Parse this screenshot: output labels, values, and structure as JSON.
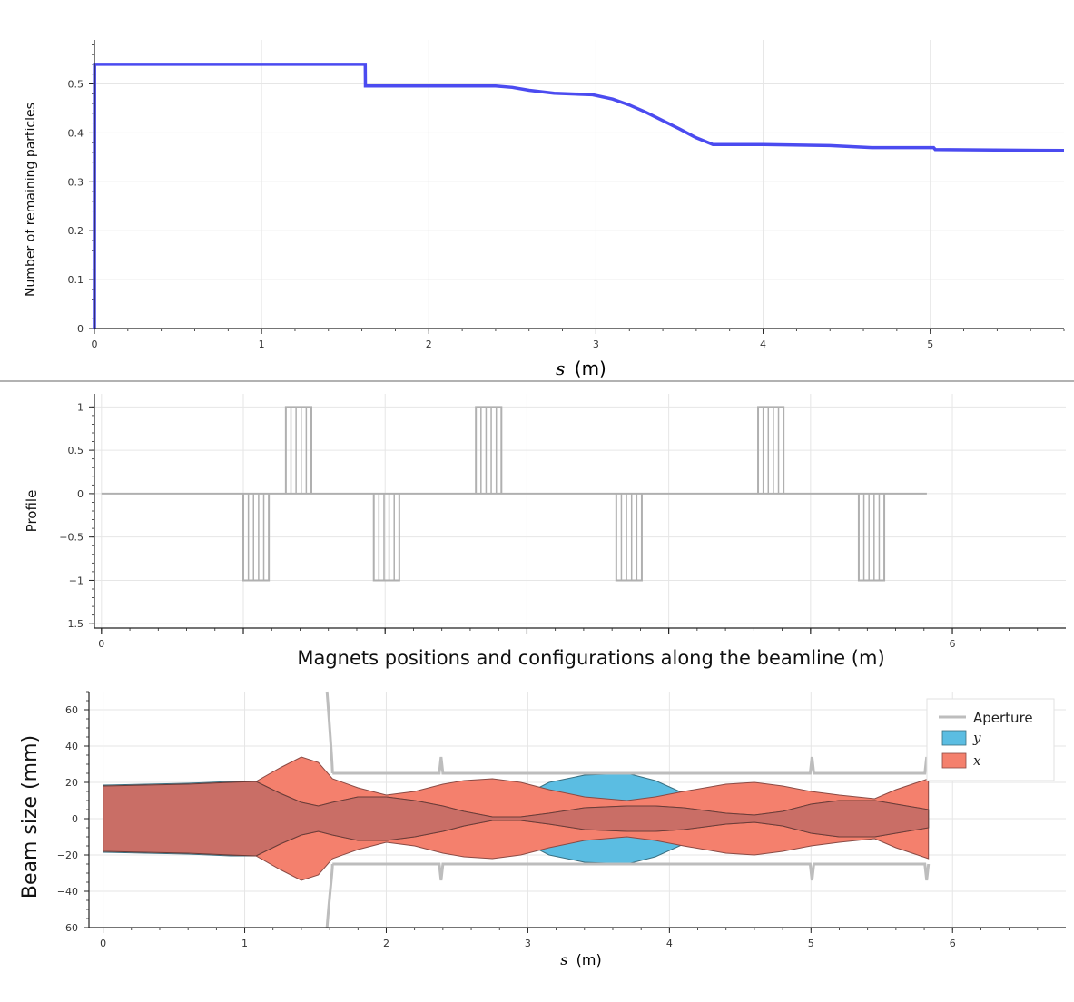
{
  "colors": {
    "survival_line": "#4b4bf0",
    "profile_line": "#b0b0b0",
    "aperture": "#bdbdbd",
    "beam_y": "#5bbde2",
    "beam_x": "#f4806d",
    "overlap": "#c96e66",
    "grid": "#e6e6e6"
  },
  "chart_data": [
    {
      "id": "survival",
      "type": "line",
      "ylabel": "Number of remaining particles",
      "xlabel_var": "s",
      "xlabel_unit": "(m)",
      "xlim": [
        0,
        5.8
      ],
      "ylim": [
        0,
        0.59
      ],
      "xticks": [
        0,
        1,
        2,
        3,
        4,
        5
      ],
      "yticks": [
        0,
        0.1,
        0.2,
        0.3,
        0.4,
        0.5
      ],
      "ytick_labels": [
        "0",
        "0.1",
        "0.2",
        "0.3",
        "0.4",
        "0.5"
      ],
      "x": [
        0,
        0.001,
        1.62,
        1.621,
        2.4,
        2.5,
        2.6,
        2.75,
        2.98,
        3.1,
        3.2,
        3.3,
        3.4,
        3.5,
        3.6,
        3.7,
        4.0,
        4.4,
        4.65,
        5.02,
        5.03,
        5.8
      ],
      "values": [
        0,
        0.54,
        0.54,
        0.496,
        0.496,
        0.493,
        0.487,
        0.481,
        0.478,
        0.469,
        0.457,
        0.442,
        0.425,
        0.408,
        0.39,
        0.376,
        0.376,
        0.374,
        0.37,
        0.37,
        0.366,
        0.364
      ]
    },
    {
      "id": "profile",
      "type": "line",
      "ylabel": "Profile",
      "xlabel": "Magnets positions and configurations along the beamline (m)",
      "xlim": [
        -0.05,
        6.8
      ],
      "ylim": [
        -1.55,
        1.15
      ],
      "xtick_positions": [
        0,
        1,
        2,
        3,
        4,
        5,
        6
      ],
      "xtick_labels": [
        "0",
        "",
        "",
        "",
        "",
        "",
        "6"
      ],
      "yticks": [
        1,
        0.5,
        0,
        -0.5,
        -1,
        -1.5
      ],
      "ytick_labels": [
        "1",
        "0.5",
        "0",
        "−0.5",
        "−1",
        "−1.5"
      ],
      "baseline": [
        0,
        5.82
      ],
      "magnets": [
        {
          "start": 1.0,
          "end": 1.18,
          "sign": -1
        },
        {
          "start": 1.3,
          "end": 1.48,
          "sign": 1
        },
        {
          "start": 1.92,
          "end": 2.1,
          "sign": -1
        },
        {
          "start": 2.64,
          "end": 2.82,
          "sign": 1
        },
        {
          "start": 3.63,
          "end": 3.81,
          "sign": -1
        },
        {
          "start": 4.63,
          "end": 4.81,
          "sign": 1
        },
        {
          "start": 5.34,
          "end": 5.52,
          "sign": -1
        }
      ]
    },
    {
      "id": "beam",
      "type": "area",
      "ylabel": "Beam size (mm)",
      "xlabel_var": "s",
      "xlabel_unit": "(m)",
      "xlim": [
        -0.1,
        6.8
      ],
      "ylim": [
        -60,
        70
      ],
      "xticks": [
        0,
        1,
        2,
        3,
        4,
        5,
        6
      ],
      "yticks": [
        60,
        40,
        20,
        0,
        -20,
        -40,
        -60
      ],
      "ytick_labels": [
        "60",
        "40",
        "20",
        "0",
        "−20",
        "−40",
        "−60"
      ],
      "legend": [
        "Aperture",
        "y",
        "x"
      ],
      "legend_position": "top-right",
      "s": [
        0,
        0.3,
        0.6,
        0.9,
        1.08,
        1.25,
        1.4,
        1.52,
        1.62,
        1.8,
        2.0,
        2.2,
        2.4,
        2.55,
        2.75,
        2.95,
        3.15,
        3.4,
        3.7,
        3.9,
        4.1,
        4.4,
        4.6,
        4.8,
        5.0,
        5.2,
        5.45,
        5.6,
        5.83
      ],
      "x_upper": [
        18,
        18.5,
        19,
        20,
        20.5,
        28,
        34,
        31,
        22,
        17,
        13,
        15,
        19,
        21,
        22,
        20,
        16,
        12,
        10,
        12,
        15,
        19,
        20,
        18,
        15,
        13,
        11,
        16,
        22
      ],
      "x_inner": [
        18,
        18.5,
        19,
        20,
        20.5,
        14,
        9,
        7,
        9,
        12,
        12,
        10,
        7,
        4,
        1,
        1,
        3,
        6,
        7,
        7,
        6,
        3,
        2,
        4,
        8,
        10,
        10,
        8,
        5
      ],
      "y_upper": [
        18.5,
        19,
        19.5,
        20.5,
        20.5,
        14,
        9,
        7,
        9,
        12,
        12,
        10,
        7,
        4,
        1,
        12,
        20,
        24,
        25,
        21,
        14,
        6,
        3,
        3,
        6,
        8,
        10,
        8,
        5
      ],
      "y_inner": [
        18.5,
        19,
        19.5,
        20.5,
        20.5,
        14,
        9,
        7,
        9,
        12,
        12,
        10,
        7,
        4,
        1,
        1,
        3,
        6,
        7,
        7,
        6,
        3,
        2,
        4,
        8,
        10,
        10,
        8,
        5
      ],
      "aperture_entrance_x": 1.62,
      "aperture_half_width": 25,
      "aperture_end": 5.83,
      "aperture_spikes": [
        2.4,
        5.02,
        5.83
      ]
    }
  ]
}
